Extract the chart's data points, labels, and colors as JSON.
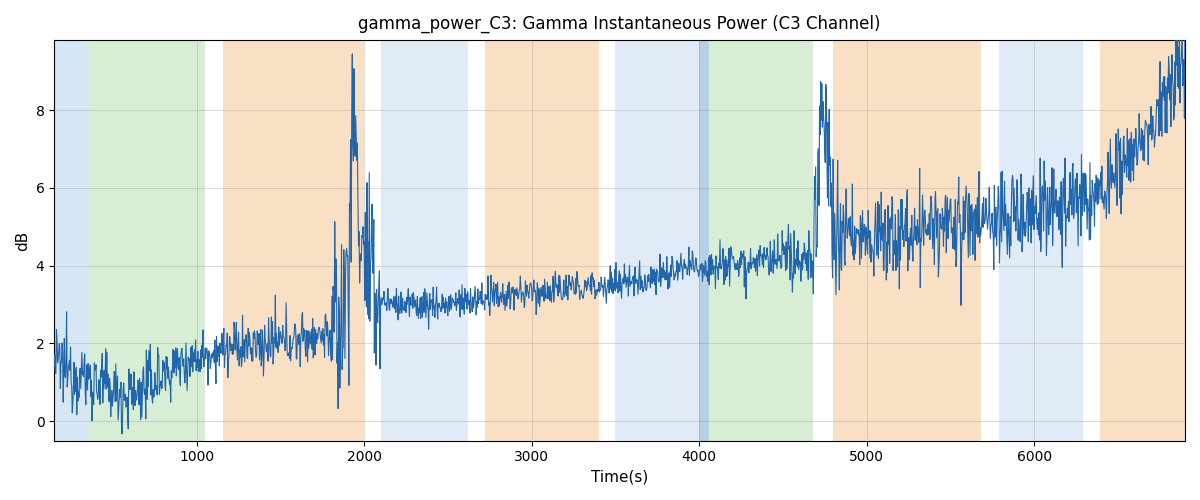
{
  "title": "gamma_power_C3: Gamma Instantaneous Power (C3 Channel)",
  "xlabel": "Time(s)",
  "ylabel": "dB",
  "xlim": [
    150,
    6900
  ],
  "ylim": [
    -0.5,
    9.8
  ],
  "line_color": "#2166ac",
  "line_width": 0.8,
  "figsize": [
    12,
    5
  ],
  "dpi": 100,
  "seed": 12345,
  "background_bands": [
    {
      "xmin": 150,
      "xmax": 360,
      "color": "#b0cfe8",
      "alpha": 0.5
    },
    {
      "xmin": 360,
      "xmax": 1050,
      "color": "#a8d8a0",
      "alpha": 0.45
    },
    {
      "xmin": 1050,
      "xmax": 1160,
      "color": "#ffffff",
      "alpha": 0.0
    },
    {
      "xmin": 1160,
      "xmax": 2000,
      "color": "#f5c896",
      "alpha": 0.55
    },
    {
      "xmin": 2000,
      "xmax": 2100,
      "color": "#ffffff",
      "alpha": 0.0
    },
    {
      "xmin": 2100,
      "xmax": 2620,
      "color": "#c4d8f0",
      "alpha": 0.5
    },
    {
      "xmin": 2620,
      "xmax": 2720,
      "color": "#ffffff",
      "alpha": 0.0
    },
    {
      "xmin": 2720,
      "xmax": 3400,
      "color": "#f5c896",
      "alpha": 0.55
    },
    {
      "xmin": 3400,
      "xmax": 3500,
      "color": "#ffffff",
      "alpha": 0.0
    },
    {
      "xmin": 3500,
      "xmax": 4000,
      "color": "#c4d8f0",
      "alpha": 0.5
    },
    {
      "xmin": 4000,
      "xmax": 4060,
      "color": "#90b8d8",
      "alpha": 0.65
    },
    {
      "xmin": 4060,
      "xmax": 4680,
      "color": "#a8d8a0",
      "alpha": 0.45
    },
    {
      "xmin": 4680,
      "xmax": 4800,
      "color": "#ffffff",
      "alpha": 0.0
    },
    {
      "xmin": 4800,
      "xmax": 5680,
      "color": "#f5c896",
      "alpha": 0.55
    },
    {
      "xmin": 5680,
      "xmax": 5790,
      "color": "#ffffff",
      "alpha": 0.0
    },
    {
      "xmin": 5790,
      "xmax": 6290,
      "color": "#c4d8f0",
      "alpha": 0.5
    },
    {
      "xmin": 6290,
      "xmax": 6390,
      "color": "#ffffff",
      "alpha": 0.0
    },
    {
      "xmin": 6390,
      "xmax": 6900,
      "color": "#f5c896",
      "alpha": 0.55
    }
  ],
  "xticks": [
    1000,
    2000,
    3000,
    4000,
    5000,
    6000
  ],
  "yticks": [
    0,
    2,
    4,
    6,
    8
  ]
}
